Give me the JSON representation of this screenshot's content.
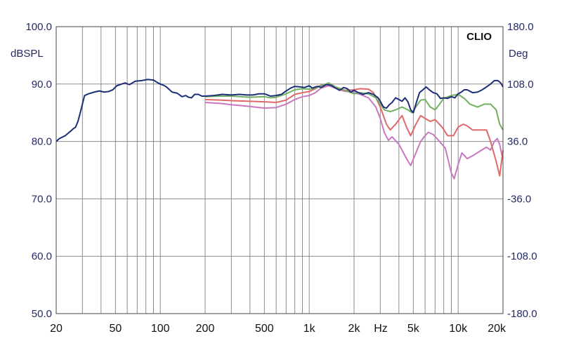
{
  "chart_data": {
    "type": "line",
    "brand": "CLIO",
    "xscale": "log",
    "xlim": [
      20,
      20000
    ],
    "ylim": [
      50,
      100
    ],
    "y2lim": [
      -180,
      180
    ],
    "ylabel": "dBSPL",
    "y2label": "Deg",
    "xunit": "Hz",
    "yticks": [
      {
        "v": 50,
        "label": "50.0"
      },
      {
        "v": 60,
        "label": "60.0"
      },
      {
        "v": 70,
        "label": "70.0"
      },
      {
        "v": 80,
        "label": "80.0"
      },
      {
        "v": 90,
        "label": "90.0"
      },
      {
        "v": 100,
        "label": "100.0"
      }
    ],
    "y2ticks": [
      {
        "v": -180,
        "label": "-180.0"
      },
      {
        "v": -108,
        "label": "-108.0"
      },
      {
        "v": -36,
        "label": "-36.0"
      },
      {
        "v": 36,
        "label": "36.0"
      },
      {
        "v": 108,
        "label": "108.0"
      },
      {
        "v": 180,
        "label": "180.0"
      }
    ],
    "xticks": [
      {
        "v": 20,
        "label": "20"
      },
      {
        "v": 50,
        "label": "50"
      },
      {
        "v": 100,
        "label": "100"
      },
      {
        "v": 200,
        "label": "200"
      },
      {
        "v": 500,
        "label": "500"
      },
      {
        "v": 1000,
        "label": "1k"
      },
      {
        "v": 2000,
        "label": "2k"
      },
      {
        "v": 5000,
        "label": "5k"
      },
      {
        "v": 10000,
        "label": "10k"
      },
      {
        "v": 20000,
        "label": "20k"
      }
    ],
    "grid": true,
    "series": [
      {
        "color": "#c878c0",
        "points": [
          [
            200,
            86.8
          ],
          [
            260,
            86.6
          ],
          [
            300,
            86.4
          ],
          [
            400,
            86.1
          ],
          [
            500,
            85.8
          ],
          [
            600,
            85.9
          ],
          [
            700,
            86.5
          ],
          [
            800,
            87.3
          ],
          [
            900,
            87.8
          ],
          [
            1000,
            88.0
          ],
          [
            1100,
            88.5
          ],
          [
            1200,
            89.3
          ],
          [
            1350,
            89.7
          ],
          [
            1500,
            89.3
          ],
          [
            1700,
            88.8
          ],
          [
            2000,
            88.5
          ],
          [
            2200,
            88.2
          ],
          [
            2500,
            87.6
          ],
          [
            2800,
            86.0
          ],
          [
            3000,
            84.0
          ],
          [
            3200,
            81.5
          ],
          [
            3400,
            80.2
          ],
          [
            3600,
            80.8
          ],
          [
            4000,
            79.5
          ],
          [
            4500,
            77.0
          ],
          [
            4800,
            75.8
          ],
          [
            5200,
            78.0
          ],
          [
            5600,
            80.0
          ],
          [
            6000,
            81.0
          ],
          [
            6300,
            81.6
          ],
          [
            6800,
            81.2
          ],
          [
            7500,
            80.0
          ],
          [
            8200,
            78.8
          ],
          [
            9000,
            74.5
          ],
          [
            9400,
            73.5
          ],
          [
            10000,
            76.0
          ],
          [
            10600,
            78.0
          ],
          [
            11500,
            77.0
          ],
          [
            12500,
            77.5
          ],
          [
            14000,
            78.3
          ],
          [
            15500,
            79.0
          ],
          [
            16500,
            78.5
          ],
          [
            17500,
            80.0
          ],
          [
            18300,
            80.5
          ],
          [
            19000,
            79.5
          ],
          [
            19700,
            77.5
          ],
          [
            20000,
            77.5
          ]
        ]
      },
      {
        "color": "#e06868",
        "points": [
          [
            200,
            87.3
          ],
          [
            260,
            87.2
          ],
          [
            300,
            87.1
          ],
          [
            400,
            87.0
          ],
          [
            500,
            86.9
          ],
          [
            600,
            86.8
          ],
          [
            700,
            87.2
          ],
          [
            800,
            88.2
          ],
          [
            900,
            88.5
          ],
          [
            1000,
            88.7
          ],
          [
            1100,
            89.2
          ],
          [
            1200,
            89.8
          ],
          [
            1350,
            90.0
          ],
          [
            1500,
            89.4
          ],
          [
            1700,
            88.9
          ],
          [
            2000,
            89.0
          ],
          [
            2200,
            89.2
          ],
          [
            2500,
            89.1
          ],
          [
            2700,
            88.5
          ],
          [
            3000,
            86.0
          ],
          [
            3300,
            83.0
          ],
          [
            3500,
            82.0
          ],
          [
            3800,
            83.0
          ],
          [
            4200,
            84.5
          ],
          [
            4500,
            82.5
          ],
          [
            4800,
            81.0
          ],
          [
            5200,
            83.0
          ],
          [
            5600,
            84.5
          ],
          [
            6000,
            84.0
          ],
          [
            6500,
            83.5
          ],
          [
            7000,
            83.8
          ],
          [
            7800,
            82.5
          ],
          [
            8500,
            81.0
          ],
          [
            9300,
            81.0
          ],
          [
            10000,
            82.5
          ],
          [
            10800,
            83.0
          ],
          [
            11500,
            82.7
          ],
          [
            12500,
            82.0
          ],
          [
            14000,
            82.0
          ],
          [
            15500,
            82.0
          ],
          [
            16500,
            80.0
          ],
          [
            18000,
            76.5
          ],
          [
            19000,
            74.0
          ],
          [
            20000,
            78.5
          ]
        ]
      },
      {
        "color": "#70b060",
        "points": [
          [
            200,
            87.8
          ],
          [
            250,
            87.9
          ],
          [
            300,
            87.9
          ],
          [
            400,
            87.7
          ],
          [
            500,
            87.8
          ],
          [
            550,
            87.6
          ],
          [
            600,
            87.7
          ],
          [
            700,
            88.3
          ],
          [
            800,
            89.0
          ],
          [
            900,
            89.2
          ],
          [
            1000,
            89.1
          ],
          [
            1100,
            89.3
          ],
          [
            1200,
            89.7
          ],
          [
            1350,
            90.2
          ],
          [
            1500,
            89.5
          ],
          [
            1700,
            89.0
          ],
          [
            2000,
            88.3
          ],
          [
            2200,
            88.5
          ],
          [
            2500,
            88.3
          ],
          [
            2800,
            87.6
          ],
          [
            3200,
            85.5
          ],
          [
            3500,
            85.2
          ],
          [
            3800,
            85.5
          ],
          [
            4200,
            86.0
          ],
          [
            4600,
            85.5
          ],
          [
            4900,
            85.0
          ],
          [
            5200,
            86.0
          ],
          [
            5600,
            87.2
          ],
          [
            6000,
            87.3
          ],
          [
            6500,
            86.0
          ],
          [
            7000,
            85.5
          ],
          [
            7500,
            86.5
          ],
          [
            8000,
            87.5
          ],
          [
            9000,
            88.0
          ],
          [
            10000,
            88.2
          ],
          [
            11000,
            87.5
          ],
          [
            12000,
            86.5
          ],
          [
            13500,
            86.0
          ],
          [
            15000,
            86.5
          ],
          [
            16500,
            86.5
          ],
          [
            18000,
            85.5
          ],
          [
            19000,
            83.0
          ],
          [
            20000,
            82.0
          ]
        ]
      },
      {
        "color": "#1c2f78",
        "points": [
          [
            20,
            80.0
          ],
          [
            21,
            80.5
          ],
          [
            23,
            81.0
          ],
          [
            25,
            81.8
          ],
          [
            26,
            82.2
          ],
          [
            27,
            82.5
          ],
          [
            28,
            83.5
          ],
          [
            29,
            85.0
          ],
          [
            30,
            86.5
          ],
          [
            31,
            88.0
          ],
          [
            33,
            88.3
          ],
          [
            36,
            88.6
          ],
          [
            39,
            88.8
          ],
          [
            42,
            88.6
          ],
          [
            45,
            88.7
          ],
          [
            48,
            89.0
          ],
          [
            51,
            89.7
          ],
          [
            55,
            90.0
          ],
          [
            58,
            90.2
          ],
          [
            62,
            89.9
          ],
          [
            68,
            90.5
          ],
          [
            75,
            90.6
          ],
          [
            82,
            90.8
          ],
          [
            90,
            90.7
          ],
          [
            95,
            90.3
          ],
          [
            100,
            90.0
          ],
          [
            105,
            89.8
          ],
          [
            110,
            89.5
          ],
          [
            120,
            88.6
          ],
          [
            130,
            88.4
          ],
          [
            140,
            87.8
          ],
          [
            148,
            88.0
          ],
          [
            155,
            87.7
          ],
          [
            162,
            87.6
          ],
          [
            170,
            88.2
          ],
          [
            180,
            88.2
          ],
          [
            190,
            87.9
          ],
          [
            200,
            87.9
          ],
          [
            230,
            88.0
          ],
          [
            260,
            88.2
          ],
          [
            300,
            88.1
          ],
          [
            340,
            88.2
          ],
          [
            380,
            88.1
          ],
          [
            420,
            88.1
          ],
          [
            460,
            88.3
          ],
          [
            500,
            88.3
          ],
          [
            550,
            87.9
          ],
          [
            600,
            88.0
          ],
          [
            650,
            88.2
          ],
          [
            700,
            88.8
          ],
          [
            750,
            89.3
          ],
          [
            800,
            89.6
          ],
          [
            870,
            89.5
          ],
          [
            930,
            89.4
          ],
          [
            1000,
            89.7
          ],
          [
            1050,
            89.3
          ],
          [
            1100,
            89.5
          ],
          [
            1150,
            89.6
          ],
          [
            1200,
            89.4
          ],
          [
            1300,
            89.9
          ],
          [
            1400,
            89.8
          ],
          [
            1500,
            89.3
          ],
          [
            1600,
            88.9
          ],
          [
            1700,
            89.4
          ],
          [
            1800,
            89.2
          ],
          [
            1900,
            88.6
          ],
          [
            2000,
            88.9
          ],
          [
            2100,
            88.6
          ],
          [
            2300,
            88.2
          ],
          [
            2500,
            88.5
          ],
          [
            2700,
            88.2
          ],
          [
            2900,
            87.6
          ],
          [
            3000,
            87.0
          ],
          [
            3150,
            86.0
          ],
          [
            3300,
            85.8
          ],
          [
            3450,
            86.4
          ],
          [
            3600,
            86.8
          ],
          [
            3800,
            87.6
          ],
          [
            4000,
            87.3
          ],
          [
            4200,
            87.0
          ],
          [
            4400,
            87.6
          ],
          [
            4600,
            86.9
          ],
          [
            4800,
            85.5
          ],
          [
            5000,
            85.0
          ],
          [
            5200,
            86.5
          ],
          [
            5500,
            88.5
          ],
          [
            5800,
            89.0
          ],
          [
            6100,
            89.5
          ],
          [
            6400,
            89.0
          ],
          [
            6800,
            88.5
          ],
          [
            7200,
            88.3
          ],
          [
            7600,
            87.5
          ],
          [
            8000,
            87.6
          ],
          [
            8500,
            87.5
          ],
          [
            9000,
            87.8
          ],
          [
            9500,
            87.6
          ],
          [
            10000,
            88.3
          ],
          [
            10500,
            88.6
          ],
          [
            11000,
            89.0
          ],
          [
            11500,
            89.0
          ],
          [
            12500,
            88.5
          ],
          [
            13500,
            88.6
          ],
          [
            14500,
            89.0
          ],
          [
            15500,
            89.5
          ],
          [
            16500,
            90.0
          ],
          [
            17500,
            90.6
          ],
          [
            18500,
            90.6
          ],
          [
            19300,
            90.2
          ],
          [
            20000,
            89.5
          ]
        ]
      }
    ]
  }
}
